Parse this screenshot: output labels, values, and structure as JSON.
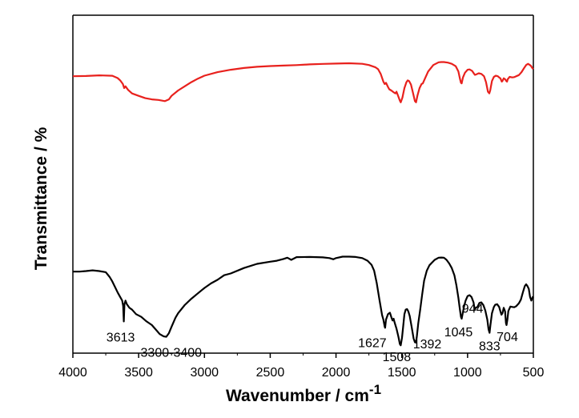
{
  "chart_data": {
    "type": "line",
    "title": "",
    "xlabel": "Wavenumber / cm",
    "xlabel_superscript": "-1",
    "ylabel": "Transmittance / %",
    "xlim": [
      4000,
      500
    ],
    "x_ticks": [
      4000,
      3500,
      3000,
      2500,
      2000,
      1500,
      1000,
      500
    ],
    "y_ticks_shown": false,
    "grid": false,
    "legend": "none",
    "series": [
      {
        "name": "red trace",
        "color": "#e8211d",
        "points": [
          [
            4000,
            62
          ],
          [
            3900,
            62.2
          ],
          [
            3800,
            62.8
          ],
          [
            3700,
            62.4
          ],
          [
            3660,
            60.5
          ],
          [
            3640,
            58.5
          ],
          [
            3620,
            55.5
          ],
          [
            3610,
            52
          ],
          [
            3600,
            53.5
          ],
          [
            3580,
            50.5
          ],
          [
            3550,
            47.5
          ],
          [
            3500,
            45.5
          ],
          [
            3450,
            43.5
          ],
          [
            3400,
            42.5
          ],
          [
            3350,
            42
          ],
          [
            3300,
            41
          ],
          [
            3270,
            42.5
          ],
          [
            3250,
            45.5
          ],
          [
            3200,
            50
          ],
          [
            3150,
            53.5
          ],
          [
            3100,
            57
          ],
          [
            3050,
            60
          ],
          [
            3000,
            62.5
          ],
          [
            2900,
            65.5
          ],
          [
            2800,
            67.5
          ],
          [
            2700,
            69
          ],
          [
            2600,
            70
          ],
          [
            2500,
            70.6
          ],
          [
            2400,
            71
          ],
          [
            2300,
            71.4
          ],
          [
            2200,
            72
          ],
          [
            2100,
            72.4
          ],
          [
            2000,
            72.7
          ],
          [
            1900,
            73
          ],
          [
            1800,
            72.5
          ],
          [
            1750,
            71.5
          ],
          [
            1700,
            69.5
          ],
          [
            1680,
            68
          ],
          [
            1660,
            64
          ],
          [
            1640,
            57.5
          ],
          [
            1630,
            55.5
          ],
          [
            1620,
            56.5
          ],
          [
            1605,
            53
          ],
          [
            1595,
            51
          ],
          [
            1580,
            50
          ],
          [
            1560,
            48.3
          ],
          [
            1548,
            47.5
          ],
          [
            1540,
            49
          ],
          [
            1530,
            46
          ],
          [
            1515,
            41.5
          ],
          [
            1508,
            40
          ],
          [
            1495,
            44
          ],
          [
            1480,
            52
          ],
          [
            1465,
            57
          ],
          [
            1455,
            58.5
          ],
          [
            1445,
            58
          ],
          [
            1430,
            55
          ],
          [
            1415,
            48
          ],
          [
            1400,
            41
          ],
          [
            1392,
            40
          ],
          [
            1380,
            46
          ],
          [
            1365,
            52
          ],
          [
            1350,
            55.5
          ],
          [
            1340,
            56
          ],
          [
            1330,
            58.5
          ],
          [
            1300,
            66
          ],
          [
            1260,
            71.5
          ],
          [
            1220,
            73.8
          ],
          [
            1200,
            74
          ],
          [
            1180,
            74
          ],
          [
            1150,
            73.5
          ],
          [
            1120,
            72.5
          ],
          [
            1090,
            70.5
          ],
          [
            1070,
            66
          ],
          [
            1058,
            60
          ],
          [
            1050,
            56.5
          ],
          [
            1045,
            56
          ],
          [
            1035,
            61
          ],
          [
            1020,
            65
          ],
          [
            1000,
            67.5
          ],
          [
            985,
            67.8
          ],
          [
            965,
            66.5
          ],
          [
            950,
            64
          ],
          [
            944,
            63.2
          ],
          [
            935,
            63.5
          ],
          [
            915,
            64.5
          ],
          [
            895,
            64
          ],
          [
            875,
            62
          ],
          [
            860,
            57
          ],
          [
            845,
            49
          ],
          [
            835,
            47.6
          ],
          [
            828,
            50
          ],
          [
            815,
            58
          ],
          [
            800,
            61.5
          ],
          [
            785,
            62.5
          ],
          [
            770,
            62
          ],
          [
            760,
            61
          ],
          [
            750,
            60.2
          ],
          [
            740,
            57.5
          ],
          [
            735,
            58
          ],
          [
            725,
            60.3
          ],
          [
            715,
            59.5
          ],
          [
            705,
            58
          ],
          [
            700,
            57.5
          ],
          [
            695,
            59.5
          ],
          [
            680,
            61.5
          ],
          [
            660,
            61
          ],
          [
            645,
            61.3
          ],
          [
            630,
            62
          ],
          [
            610,
            63
          ],
          [
            590,
            65.5
          ],
          [
            570,
            69
          ],
          [
            555,
            71.5
          ],
          [
            540,
            72.5
          ],
          [
            520,
            71
          ],
          [
            505,
            68.5
          ],
          [
            500,
            69
          ]
        ]
      },
      {
        "name": "black trace",
        "color": "#000000",
        "points": [
          [
            4000,
            41.5
          ],
          [
            3950,
            41.5
          ],
          [
            3900,
            41.8
          ],
          [
            3850,
            42.2
          ],
          [
            3800,
            41.8
          ],
          [
            3750,
            41.2
          ],
          [
            3720,
            38.5
          ],
          [
            3700,
            36
          ],
          [
            3680,
            33
          ],
          [
            3660,
            30
          ],
          [
            3640,
            27.5
          ],
          [
            3625,
            25.5
          ],
          [
            3618,
            22.5
          ],
          [
            3613,
            14
          ],
          [
            3608,
            23.5
          ],
          [
            3600,
            25.5
          ],
          [
            3590,
            23.5
          ],
          [
            3570,
            21.5
          ],
          [
            3550,
            20.5
          ],
          [
            3520,
            18
          ],
          [
            3480,
            16.5
          ],
          [
            3440,
            14
          ],
          [
            3400,
            12
          ],
          [
            3370,
            9.5
          ],
          [
            3340,
            7
          ],
          [
            3310,
            5.7
          ],
          [
            3290,
            5.5
          ],
          [
            3270,
            7.5
          ],
          [
            3250,
            11
          ],
          [
            3220,
            16
          ],
          [
            3200,
            18.5
          ],
          [
            3150,
            23
          ],
          [
            3100,
            26.5
          ],
          [
            3050,
            29.5
          ],
          [
            3000,
            32.5
          ],
          [
            2950,
            35
          ],
          [
            2900,
            37
          ],
          [
            2850,
            39.5
          ],
          [
            2800,
            40.5
          ],
          [
            2700,
            43.5
          ],
          [
            2600,
            45.8
          ],
          [
            2500,
            47
          ],
          [
            2450,
            47.5
          ],
          [
            2400,
            48.5
          ],
          [
            2370,
            49.2
          ],
          [
            2340,
            48
          ],
          [
            2300,
            49.5
          ],
          [
            2200,
            49.6
          ],
          [
            2100,
            49.4
          ],
          [
            2050,
            49
          ],
          [
            2020,
            48.3
          ],
          [
            2000,
            49
          ],
          [
            1950,
            49.8
          ],
          [
            1900,
            49.8
          ],
          [
            1850,
            49.6
          ],
          [
            1800,
            49
          ],
          [
            1760,
            47.5
          ],
          [
            1730,
            45.3
          ],
          [
            1710,
            42
          ],
          [
            1690,
            35
          ],
          [
            1670,
            26
          ],
          [
            1650,
            17.5
          ],
          [
            1640,
            15
          ],
          [
            1630,
            11
          ],
          [
            1627,
            10.5
          ],
          [
            1620,
            15
          ],
          [
            1605,
            18
          ],
          [
            1590,
            18.8
          ],
          [
            1578,
            16
          ],
          [
            1570,
            14.5
          ],
          [
            1562,
            15.5
          ],
          [
            1555,
            13.5
          ],
          [
            1540,
            10
          ],
          [
            1525,
            5.3
          ],
          [
            1515,
            1.5
          ],
          [
            1508,
            0.8
          ],
          [
            1498,
            5
          ],
          [
            1490,
            11
          ],
          [
            1480,
            18
          ],
          [
            1470,
            20.5
          ],
          [
            1460,
            20.8
          ],
          [
            1450,
            19.5
          ],
          [
            1440,
            17
          ],
          [
            1425,
            11
          ],
          [
            1410,
            4.5
          ],
          [
            1400,
            2.5
          ],
          [
            1392,
            2.3
          ],
          [
            1385,
            6
          ],
          [
            1375,
            13
          ],
          [
            1360,
            20.5
          ],
          [
            1345,
            29
          ],
          [
            1330,
            36.5
          ],
          [
            1310,
            42
          ],
          [
            1290,
            45
          ],
          [
            1270,
            46.5
          ],
          [
            1250,
            48
          ],
          [
            1220,
            49.2
          ],
          [
            1200,
            49.3
          ],
          [
            1180,
            49.2
          ],
          [
            1160,
            48
          ],
          [
            1140,
            46
          ],
          [
            1120,
            43.5
          ],
          [
            1100,
            39.5
          ],
          [
            1085,
            34
          ],
          [
            1070,
            27
          ],
          [
            1060,
            21.5
          ],
          [
            1050,
            16.5
          ],
          [
            1045,
            15.5
          ],
          [
            1038,
            18
          ],
          [
            1028,
            22
          ],
          [
            1015,
            25.5
          ],
          [
            1000,
            28
          ],
          [
            985,
            28.5
          ],
          [
            970,
            27.5
          ],
          [
            955,
            24.5
          ],
          [
            948,
            21.5
          ],
          [
            944,
            20.6
          ],
          [
            938,
            21.5
          ],
          [
            925,
            22
          ],
          [
            910,
            24.2
          ],
          [
            895,
            24.5
          ],
          [
            880,
            23
          ],
          [
            865,
            20
          ],
          [
            850,
            15
          ],
          [
            840,
            9.5
          ],
          [
            833,
            7.7
          ],
          [
            826,
            12
          ],
          [
            815,
            18.5
          ],
          [
            800,
            22
          ],
          [
            790,
            23.2
          ],
          [
            775,
            23.5
          ],
          [
            760,
            22
          ],
          [
            750,
            19.5
          ],
          [
            742,
            17.7
          ],
          [
            735,
            18.5
          ],
          [
            725,
            21.5
          ],
          [
            715,
            19.5
          ],
          [
            708,
            13
          ],
          [
            704,
            12
          ],
          [
            697,
            15
          ],
          [
            690,
            19.8
          ],
          [
            675,
            22.2
          ],
          [
            660,
            22
          ],
          [
            645,
            21.8
          ],
          [
            630,
            22.4
          ],
          [
            610,
            24
          ],
          [
            595,
            26
          ],
          [
            580,
            30
          ],
          [
            565,
            33.5
          ],
          [
            555,
            34.5
          ],
          [
            545,
            33.5
          ],
          [
            535,
            32
          ],
          [
            525,
            27.5
          ],
          [
            515,
            25.5
          ],
          [
            505,
            27.5
          ],
          [
            500,
            27
          ]
        ]
      }
    ],
    "annotations": [
      {
        "text": "3613",
        "x": 3613
      },
      {
        "text": "3300-3400",
        "x": 3350
      },
      {
        "text": "1627",
        "x": 1627
      },
      {
        "text": "1508",
        "x": 1508
      },
      {
        "text": "1392",
        "x": 1392
      },
      {
        "text": "1045",
        "x": 1045
      },
      {
        "text": "944",
        "x": 944
      },
      {
        "text": "833",
        "x": 833
      },
      {
        "text": "704",
        "x": 704
      }
    ]
  }
}
